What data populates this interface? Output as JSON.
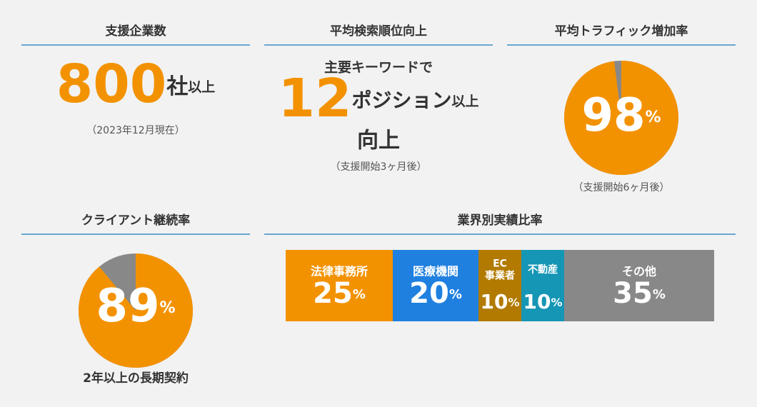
{
  "stats": [
    {
      "title": "支援企業数",
      "value": 800,
      "unit": "社",
      "suffix": "以上",
      "note": "（2023年12月現在）"
    },
    {
      "title": "平均検索順位向上",
      "prefix": "主要キーワードで",
      "value": 12,
      "unit": "ポジション",
      "suffix": "以上",
      "line2": "向上",
      "note": "（支援開始3ヶ月後）"
    },
    {
      "title": "平均トラフィック増加率",
      "value": 98,
      "unit": "%",
      "note": "（支援開始6ヶ月後）"
    },
    {
      "title": "クライアント継続率",
      "value": 89,
      "unit": "%",
      "note": "2年以上の長期契約"
    }
  ],
  "industries": {
    "title": "業界別実績比率",
    "unit": "%",
    "segments": [
      {
        "label": [
          "法律事務所"
        ],
        "value": 25,
        "color": "#f39200"
      },
      {
        "label": [
          "医療機関"
        ],
        "value": 20,
        "color": "#1f80e0"
      },
      {
        "label": [
          "EC",
          "事業者"
        ],
        "value": 10,
        "color": "#b27a00"
      },
      {
        "label": [
          "不動産"
        ],
        "value": 10,
        "color": "#1596b5"
      },
      {
        "label": [
          "その他"
        ],
        "value": 35,
        "color": "#888888"
      }
    ]
  }
}
